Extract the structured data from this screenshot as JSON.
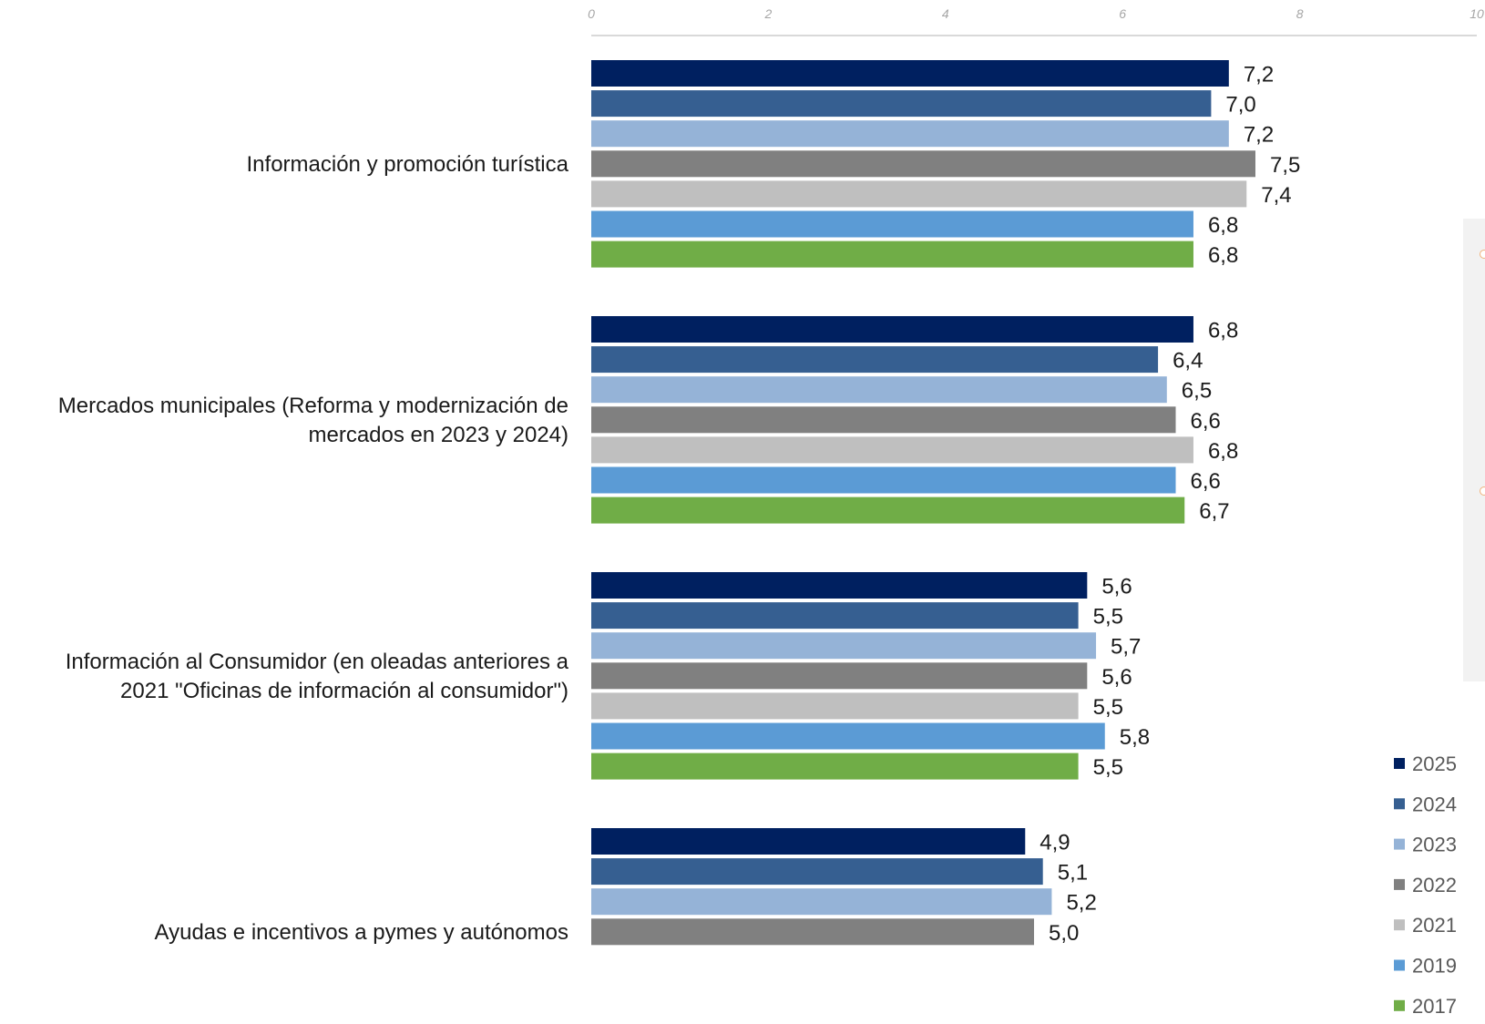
{
  "chart_data": {
    "type": "bar",
    "orientation": "horizontal",
    "title": "",
    "xlabel": "",
    "ylabel": "",
    "xlim": [
      0,
      10
    ],
    "ticks": [
      "0",
      "2",
      "4",
      "6",
      "8",
      "10"
    ],
    "grid": false,
    "legend_position": "bottom-right",
    "categories": [
      "Información y promoción turística",
      "Mercados municipales (Reforma y modernización de mercados en 2023 y 2024)",
      "Información al Consumidor (en oleadas anteriores a 2021 \"Oficinas de información al consumidor\")",
      "Ayudas e incentivos a pymes y autónomos"
    ],
    "category_lines": [
      [
        "Información y promoción turística"
      ],
      [
        "Mercados municipales (Reforma y modernización de",
        "mercados en 2023 y 2024)"
      ],
      [
        "Información al Consumidor (en oleadas anteriores a",
        "2021 \"Oficinas de información al consumidor\")"
      ],
      [
        "Ayudas e incentivos a pymes y autónomos"
      ]
    ],
    "series": [
      {
        "name": "2025",
        "color": "#002060",
        "values": [
          7.2,
          6.8,
          5.6,
          4.9
        ],
        "labels": [
          "7,2",
          "6,8",
          "5,6",
          "4,9"
        ]
      },
      {
        "name": "2024",
        "color": "#365f91",
        "values": [
          7.0,
          6.4,
          5.5,
          5.1
        ],
        "labels": [
          "7,0",
          "6,4",
          "5,5",
          "5,1"
        ]
      },
      {
        "name": "2023",
        "color": "#95b3d7",
        "values": [
          7.2,
          6.5,
          5.7,
          5.2
        ],
        "labels": [
          "7,2",
          "6,5",
          "5,7",
          "5,2"
        ]
      },
      {
        "name": "2022",
        "color": "#808080",
        "values": [
          7.5,
          6.6,
          5.6,
          5.0
        ],
        "labels": [
          "7,5",
          "6,6",
          "5,6",
          "5,0"
        ]
      },
      {
        "name": "2021",
        "color": "#bfbfbf",
        "values": [
          7.4,
          6.8,
          5.5,
          null
        ],
        "labels": [
          "7,4",
          "6,8",
          "5,5",
          ""
        ]
      },
      {
        "name": "2019",
        "color": "#5b9bd5",
        "values": [
          6.8,
          6.6,
          5.8,
          null
        ],
        "labels": [
          "6,8",
          "6,6",
          "5,8",
          ""
        ]
      },
      {
        "name": "2017",
        "color": "#70ad47",
        "values": [
          6.8,
          6.7,
          5.5,
          null
        ],
        "labels": [
          "6,8",
          "6,7",
          "5,5",
          ""
        ]
      }
    ]
  }
}
